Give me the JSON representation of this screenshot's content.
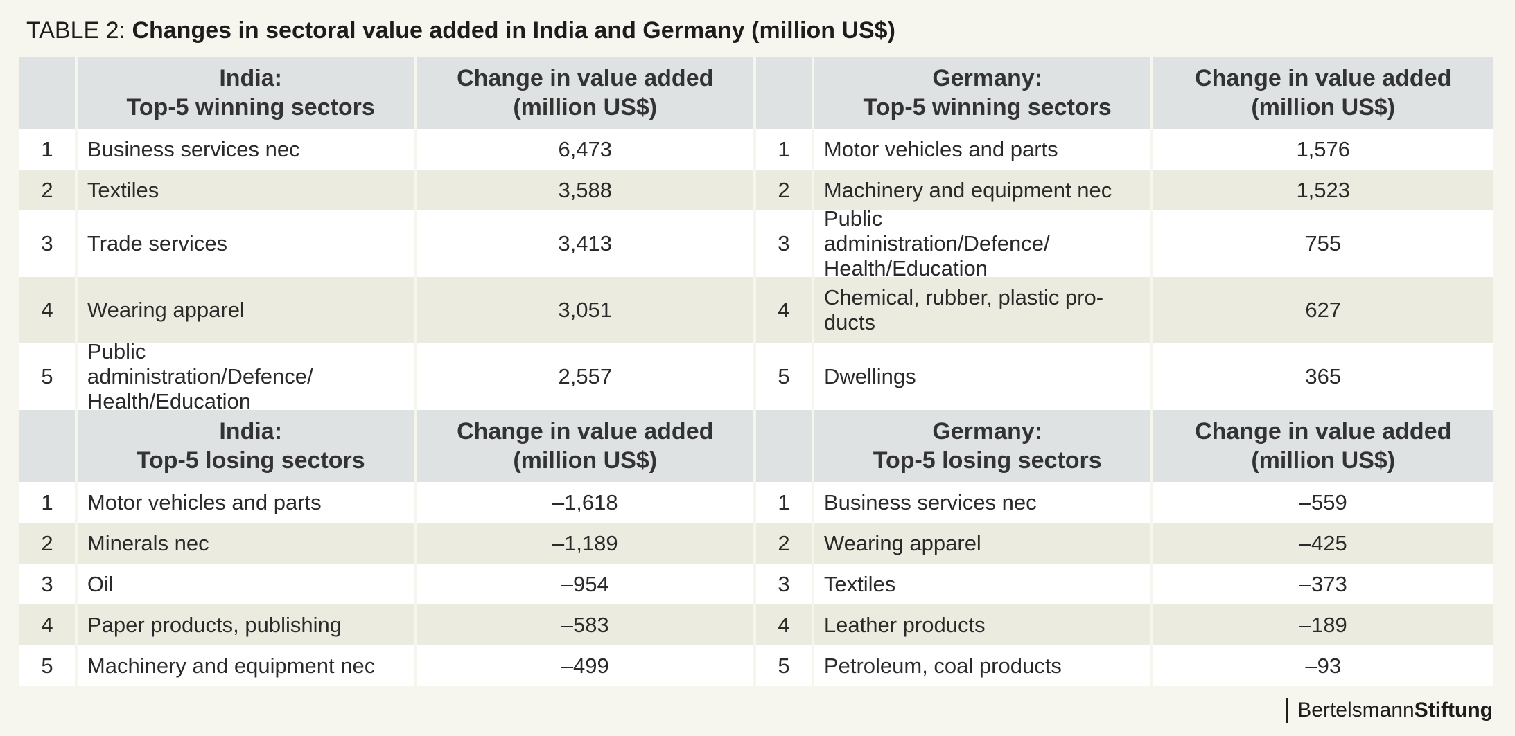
{
  "title": {
    "prefix": "TABLE 2: ",
    "main": "Changes in sectoral value added in India and Germany (million US$)"
  },
  "headers": {
    "winning": {
      "india_line1": "India:",
      "india_line2": "Top-5 winning sectors",
      "germany_line1": "Germany:",
      "germany_line2": "Top-5 winning sectors"
    },
    "losing": {
      "india_line1": "India:",
      "india_line2": "Top-5 losing sectors",
      "germany_line1": "Germany:",
      "germany_line2": "Top-5 losing sectors"
    },
    "value_line1": "Change in value added",
    "value_line2": "(million US$)"
  },
  "winning": [
    {
      "rank": "1",
      "india_sector": "Business services nec",
      "india_value": "6,473",
      "germany_sector": "Motor vehicles and parts",
      "germany_value": "1,576"
    },
    {
      "rank": "2",
      "india_sector": "Textiles",
      "india_value": "3,588",
      "germany_sector": "Machinery and equipment nec",
      "germany_value": "1,523"
    },
    {
      "rank": "3",
      "india_sector": "Trade services",
      "india_value": "3,413",
      "germany_sector": "Public administration/Defence/ Health/Education",
      "germany_value": "755"
    },
    {
      "rank": "4",
      "india_sector": "Wearing apparel",
      "india_value": "3,051",
      "germany_sector": "Chemical, rubber, plastic pro- ducts",
      "germany_value": "627"
    },
    {
      "rank": "5",
      "india_sector": "Public administration/Defence/ Health/Education",
      "india_value": "2,557",
      "germany_sector": "Dwellings",
      "germany_value": "365"
    }
  ],
  "losing": [
    {
      "rank": "1",
      "india_sector": "Motor vehicles and parts",
      "india_value": "–1,618",
      "germany_sector": "Business services nec",
      "germany_value": "–559"
    },
    {
      "rank": "2",
      "india_sector": "Minerals nec",
      "india_value": "–1,189",
      "germany_sector": "Wearing apparel",
      "germany_value": "–425"
    },
    {
      "rank": "3",
      "india_sector": "Oil",
      "india_value": "–954",
      "germany_sector": "Textiles",
      "germany_value": "–373"
    },
    {
      "rank": "4",
      "india_sector": "Paper products, publishing",
      "india_value": "–583",
      "germany_sector": "Leather products",
      "germany_value": "–189"
    },
    {
      "rank": "5",
      "india_sector": "Machinery and equipment nec",
      "india_value": "–499",
      "germany_sector": "Petroleum, coal products",
      "germany_value": "–93"
    }
  ],
  "footer": {
    "brand_regular": "Bertelsmann",
    "brand_bold": "Stiftung"
  }
}
